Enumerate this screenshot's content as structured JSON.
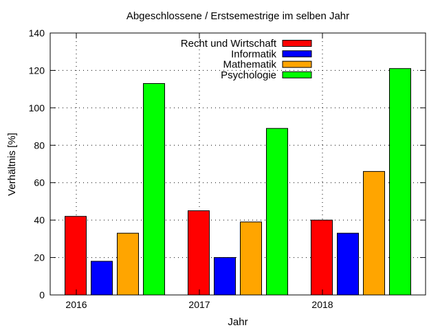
{
  "chart_data": {
    "type": "bar",
    "title": "Abgeschlossene / Erstsemestrige im selben Jahr",
    "xlabel": "Jahr",
    "ylabel": "Verhältnis [%]",
    "categories": [
      "2016",
      "2017",
      "2018"
    ],
    "ylim": [
      0,
      140
    ],
    "yticks": [
      0,
      20,
      40,
      60,
      80,
      100,
      120,
      140
    ],
    "grid": true,
    "legend_position": "top-center",
    "series": [
      {
        "name": "Recht und Wirtschaft",
        "color": "#ff0000",
        "values": [
          42,
          45,
          40
        ]
      },
      {
        "name": "Informatik",
        "color": "#0000ff",
        "values": [
          18,
          20,
          33
        ]
      },
      {
        "name": "Mathematik",
        "color": "#ffa500",
        "values": [
          33,
          39,
          66
        ]
      },
      {
        "name": "Psychologie",
        "color": "#00ff00",
        "values": [
          113,
          89,
          121
        ]
      }
    ]
  }
}
